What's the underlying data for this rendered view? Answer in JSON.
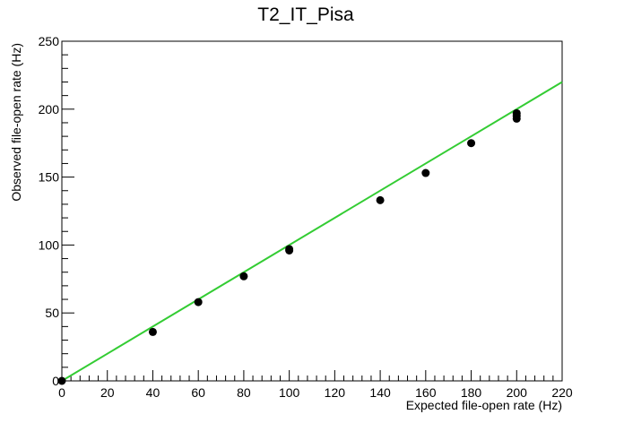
{
  "chart_data": {
    "type": "scatter",
    "title": "T2_IT_Pisa",
    "xlabel": "Expected file-open rate (Hz)",
    "ylabel": "Observed file-open rate (Hz)",
    "xlim": [
      0,
      220
    ],
    "ylim": [
      0,
      250
    ],
    "x_ticks": [
      0,
      20,
      40,
      60,
      80,
      100,
      120,
      140,
      160,
      180,
      200,
      220
    ],
    "y_ticks": [
      0,
      50,
      100,
      150,
      200,
      250
    ],
    "grid": false,
    "legend": "none",
    "points": [
      {
        "x": 0,
        "y": 0
      },
      {
        "x": 40,
        "y": 36
      },
      {
        "x": 60,
        "y": 58
      },
      {
        "x": 80,
        "y": 77
      },
      {
        "x": 100,
        "y": 96
      },
      {
        "x": 100,
        "y": 97
      },
      {
        "x": 140,
        "y": 133
      },
      {
        "x": 160,
        "y": 153
      },
      {
        "x": 180,
        "y": 175
      },
      {
        "x": 200,
        "y": 193
      },
      {
        "x": 200,
        "y": 195
      },
      {
        "x": 200,
        "y": 197
      }
    ],
    "reference_line": {
      "x": [
        0,
        220
      ],
      "y": [
        0,
        220
      ],
      "color": "#33cc33"
    },
    "marker_color": "#000000"
  }
}
